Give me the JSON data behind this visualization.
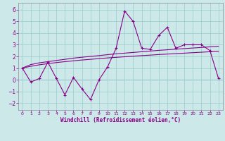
{
  "xlabel": "Windchill (Refroidissement éolien,°C)",
  "bg_color": "#cce8e8",
  "line_color": "#880088",
  "grid_color": "#99cccc",
  "xlim": [
    -0.5,
    23.5
  ],
  "ylim": [
    -2.6,
    6.6
  ],
  "xticks": [
    0,
    1,
    2,
    3,
    4,
    5,
    6,
    7,
    8,
    9,
    10,
    11,
    12,
    13,
    14,
    15,
    16,
    17,
    18,
    19,
    20,
    21,
    22,
    23
  ],
  "yticks": [
    -2,
    -1,
    0,
    1,
    2,
    3,
    4,
    5,
    6
  ],
  "line1_x": [
    0,
    1,
    2,
    3,
    4,
    5,
    6,
    7,
    8,
    9,
    10,
    11,
    12,
    13,
    14,
    15,
    16,
    17,
    18,
    19,
    20,
    21,
    22,
    23
  ],
  "line1_y": [
    1.0,
    -0.2,
    0.1,
    1.5,
    0.1,
    -1.3,
    0.2,
    -0.8,
    -1.7,
    0.0,
    1.1,
    2.7,
    5.9,
    5.0,
    2.7,
    2.6,
    3.8,
    4.5,
    2.7,
    3.0,
    3.0,
    3.0,
    2.5,
    0.1
  ],
  "line2_x": [
    0,
    1,
    2,
    3,
    4,
    5,
    6,
    7,
    8,
    9,
    10,
    11,
    12,
    13,
    14,
    15,
    16,
    17,
    18,
    19,
    20,
    21,
    22,
    23
  ],
  "line2_y": [
    1.0,
    1.3,
    1.45,
    1.55,
    1.65,
    1.75,
    1.85,
    1.93,
    2.0,
    2.07,
    2.15,
    2.22,
    2.28,
    2.34,
    2.4,
    2.46,
    2.52,
    2.57,
    2.62,
    2.67,
    2.72,
    2.77,
    2.82,
    2.87
  ],
  "line3_x": [
    0,
    1,
    2,
    3,
    4,
    5,
    6,
    7,
    8,
    9,
    10,
    11,
    12,
    13,
    14,
    15,
    16,
    17,
    18,
    19,
    20,
    21,
    22,
    23
  ],
  "line3_y": [
    1.0,
    1.15,
    1.28,
    1.38,
    1.47,
    1.55,
    1.62,
    1.69,
    1.75,
    1.81,
    1.87,
    1.92,
    1.97,
    2.02,
    2.07,
    2.11,
    2.16,
    2.2,
    2.24,
    2.28,
    2.32,
    2.36,
    2.4,
    2.44
  ]
}
